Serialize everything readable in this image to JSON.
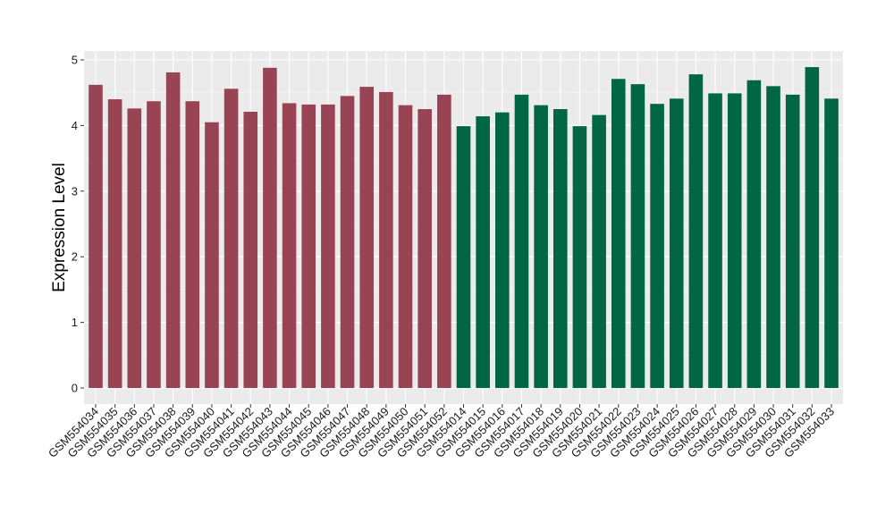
{
  "chart_data": {
    "type": "bar",
    "title": "",
    "xlabel": "",
    "ylabel": "Expression Level",
    "ylim": [
      0,
      5
    ],
    "yticks": [
      0,
      1,
      2,
      3,
      4,
      5
    ],
    "grid": true,
    "background": "#ebebeb",
    "categories": [
      "GSM554034",
      "GSM554035",
      "GSM554036",
      "GSM554037",
      "GSM554038",
      "GSM554039",
      "GSM554040",
      "GSM554041",
      "GSM554042",
      "GSM554043",
      "GSM554044",
      "GSM554045",
      "GSM554046",
      "GSM554047",
      "GSM554048",
      "GSM554049",
      "GSM554050",
      "GSM554051",
      "GSM554052",
      "GSM554014",
      "GSM554015",
      "GSM554016",
      "GSM554017",
      "GSM554018",
      "GSM554019",
      "GSM554020",
      "GSM554021",
      "GSM554022",
      "GSM554023",
      "GSM554024",
      "GSM554025",
      "GSM554026",
      "GSM554027",
      "GSM554028",
      "GSM554029",
      "GSM554030",
      "GSM554031",
      "GSM554032",
      "GSM554033"
    ],
    "values": [
      4.62,
      4.4,
      4.26,
      4.37,
      4.81,
      4.37,
      4.05,
      4.56,
      4.21,
      4.88,
      4.34,
      4.32,
      4.32,
      4.45,
      4.59,
      4.51,
      4.31,
      4.25,
      4.47,
      3.99,
      4.14,
      4.2,
      4.47,
      4.31,
      4.25,
      3.99,
      4.16,
      4.71,
      4.63,
      4.33,
      4.41,
      4.78,
      4.49,
      4.49,
      4.69,
      4.6,
      4.47,
      4.89,
      4.41
    ],
    "groups": [
      {
        "color": "#994455",
        "count": 19
      },
      {
        "color": "#006644",
        "count": 20
      }
    ]
  }
}
